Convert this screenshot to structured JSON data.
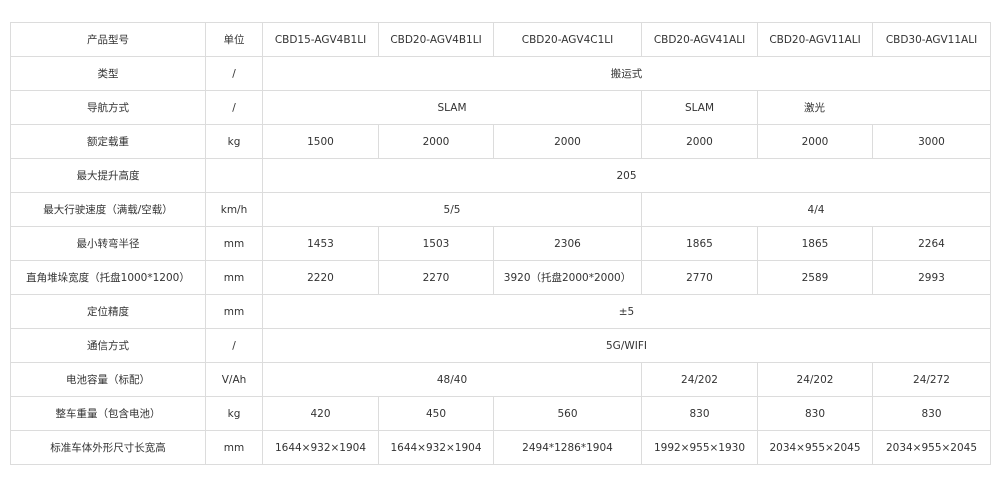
{
  "table": {
    "header": [
      "产品型号",
      "单位",
      "CBD15-AGV4B1LI",
      "CBD20-AGV4B1LI",
      "CBD20-AGV4C1LI",
      "CBD20-AGV41ALI",
      "CBD20-AGV11ALI",
      "CBD30-AGV11ALI"
    ],
    "rows": [
      {
        "label": "类型",
        "unit": "/",
        "cells": [
          "搬运式"
        ]
      },
      {
        "label": "导航方式",
        "unit": "/",
        "cells": [
          "SLAM",
          "SLAM",
          "激光"
        ]
      },
      {
        "label": "额定载重",
        "unit": "kg",
        "cells": [
          "1500",
          "2000",
          "2000",
          "2000",
          "2000",
          "3000"
        ]
      },
      {
        "label": "最大提升高度",
        "cells": [
          "205"
        ]
      },
      {
        "label": "最大行驶速度（满载/空载）",
        "unit": "km/h",
        "cells": [
          "5/5",
          "4/4"
        ]
      },
      {
        "label": "最小转弯半径",
        "unit": "mm",
        "cells": [
          "1453",
          "1503",
          "2306",
          "1865",
          "1865",
          "2264"
        ]
      },
      {
        "label": "直角堆垛宽度（托盘1000*1200）",
        "unit": "mm",
        "cells": [
          "2220",
          "2270",
          "3920（托盘2000*2000）",
          "2770",
          "2589",
          "2993"
        ]
      },
      {
        "label": "定位精度",
        "unit": "mm",
        "cells": [
          "±5"
        ]
      },
      {
        "label": "通信方式",
        "unit": "/",
        "cells": [
          "5G/WIFI"
        ]
      },
      {
        "label": "电池容量（标配）",
        "unit": "V/Ah",
        "cells": [
          "48/40",
          "24/202",
          "24/202",
          "24/272"
        ]
      },
      {
        "label": "整车重量（包含电池）",
        "unit": "kg",
        "cells": [
          "420",
          "450",
          "560",
          "830",
          "830",
          "830"
        ]
      },
      {
        "label": "标准车体外形尺寸长宽高",
        "unit": "mm",
        "cells": [
          "1644×932×1904",
          "1644×932×1904",
          "2494*1286*1904",
          "1992×955×1930",
          "2034×955×2045",
          "2034×955×2045"
        ]
      }
    ]
  }
}
